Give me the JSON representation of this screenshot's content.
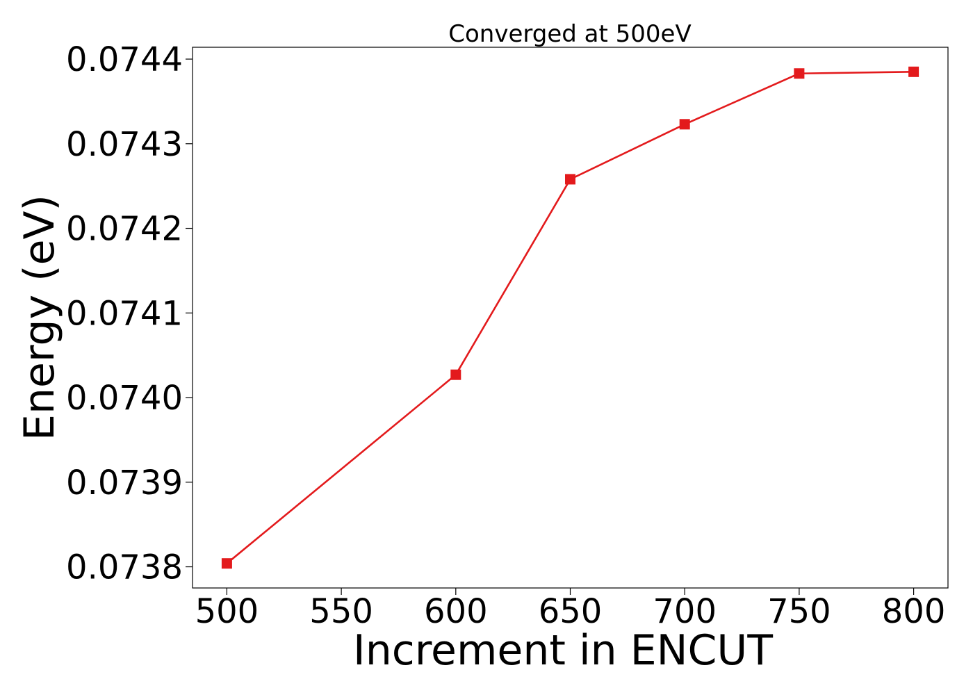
{
  "chart_data": {
    "type": "line",
    "title": "Converged at 500eV",
    "xlabel": "Increment in ENCUT",
    "ylabel": "Energy (eV)",
    "x": [
      500,
      600,
      650,
      700,
      750,
      800
    ],
    "xlim": [
      485,
      815
    ],
    "ylim": [
      0.073775,
      0.074414
    ],
    "xticks": [
      500,
      550,
      600,
      650,
      700,
      750,
      800
    ],
    "xtick_labels": [
      "500",
      "550",
      "600",
      "650",
      "700",
      "750",
      "800"
    ],
    "yticks": [
      0.0738,
      0.0739,
      0.074,
      0.0741,
      0.0742,
      0.0743,
      0.0744
    ],
    "ytick_labels": [
      "0.0738",
      "0.0739",
      "0.0740",
      "0.0741",
      "0.0742",
      "0.0743",
      "0.0744"
    ],
    "grid": false,
    "series": [
      {
        "color": "#e31a1c",
        "marker": "square",
        "values": [
          0.073804,
          0.074027,
          0.074258,
          0.074323,
          0.074383,
          0.074385
        ]
      }
    ]
  }
}
